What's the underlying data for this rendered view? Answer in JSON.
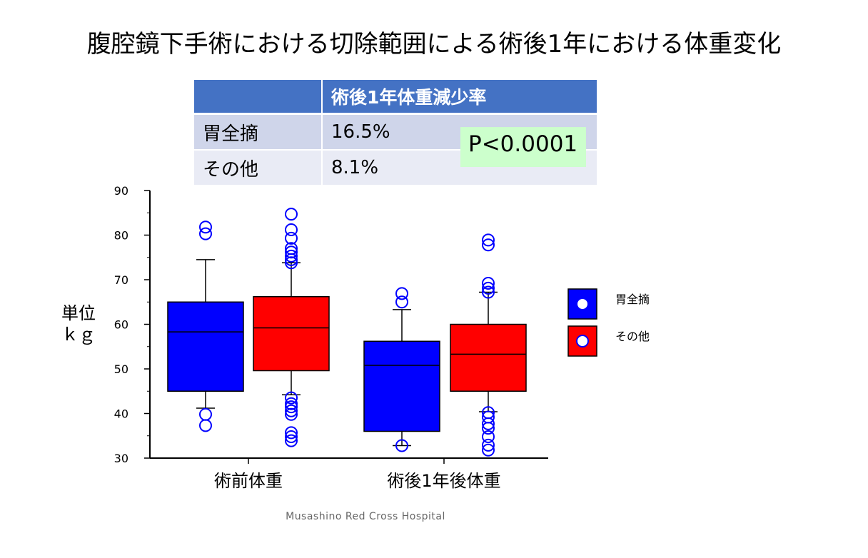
{
  "slide": {
    "title": "腹腔鏡下手術における切除範囲による術後1年における体重変化",
    "footer": "Musashino Red Cross Hospital"
  },
  "table": {
    "header": [
      "",
      "術後1年体重減少率"
    ],
    "rows": [
      {
        "label": "胃全摘",
        "value": "16.5%"
      },
      {
        "label": "その他",
        "value": "8.1%"
      }
    ],
    "p_value": "P<0.0001"
  },
  "chart_data": {
    "type": "boxplot",
    "ylabel": "単位\nｋｇ",
    "ylim": [
      30,
      90
    ],
    "yticks": [
      30,
      40,
      50,
      60,
      70,
      80,
      90
    ],
    "categories": [
      "術前体重",
      "術後1年後体重"
    ],
    "grid": false,
    "legend_position": "right",
    "series": [
      {
        "name": "胃全摘",
        "color": "#0000ff",
        "boxes": [
          {
            "q1": 45,
            "median": 58.3,
            "q3": 65,
            "whisker_low": 41.2,
            "whisker_high": 74.5,
            "outliers": [
              37.3,
              39.8,
              80.3,
              81.8
            ]
          },
          {
            "q1": 36,
            "median": 50.8,
            "q3": 56.2,
            "whisker_low": 32.8,
            "whisker_high": 63.3,
            "outliers": [
              32.8,
              65,
              66.9
            ]
          }
        ]
      },
      {
        "name": "その他",
        "color": "#ff0000",
        "boxes": [
          {
            "q1": 49.6,
            "median": 59.2,
            "q3": 66.2,
            "whisker_low": 44.2,
            "whisker_high": 73.8,
            "outliers": [
              33.9,
              34.8,
              35.7,
              39.8,
              40.6,
              41.5,
              42.2,
              43.5,
              73.8,
              74.5,
              75.3,
              76.2,
              77,
              79.3,
              81.2,
              84.7
            ]
          },
          {
            "q1": 45,
            "median": 53.3,
            "q3": 60,
            "whisker_low": 40.4,
            "whisker_high": 67.2,
            "outliers": [
              31.8,
              32.9,
              34.8,
              36.7,
              37.7,
              39.2,
              40.2,
              67.2,
              68.1,
              69.2,
              77.8,
              78.9
            ]
          }
        ]
      }
    ]
  }
}
